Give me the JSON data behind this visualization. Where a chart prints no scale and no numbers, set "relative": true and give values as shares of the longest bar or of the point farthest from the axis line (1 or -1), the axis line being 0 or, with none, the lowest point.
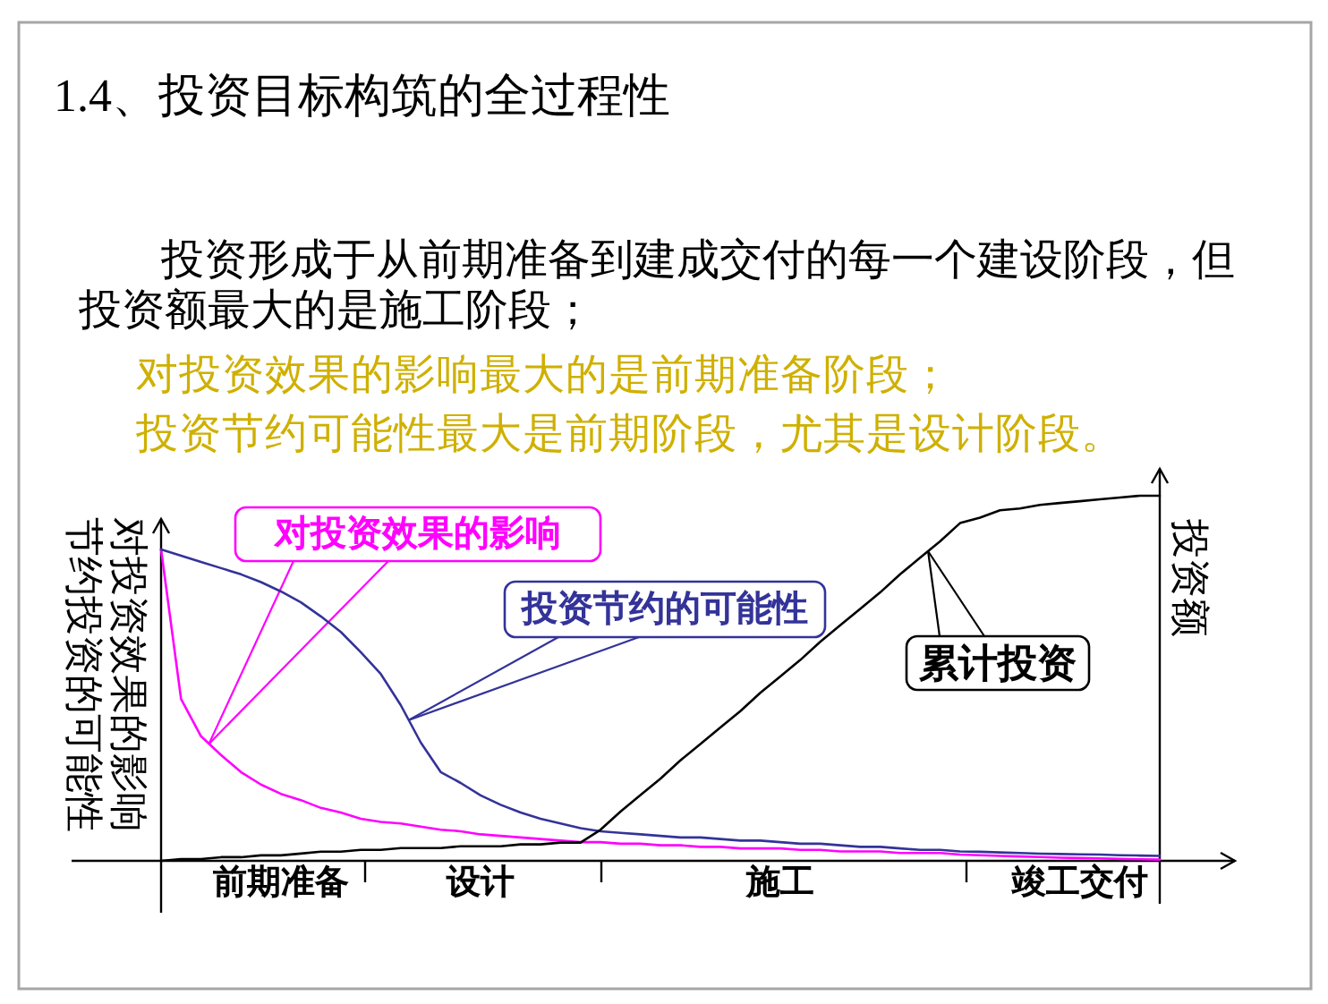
{
  "chart_data": {
    "type": "line",
    "title": "1.4、投资目标构筑的全过程性",
    "subtitle": "投资形成于从前期准备到建成交付的每一个建设阶段，但投资额最大的是施工阶段；",
    "annotations": [
      "对投资效果的影响最大的是前期准备阶段；",
      "投资节约可能性最大是前期阶段，尤其是设计阶段。"
    ],
    "ylabel": "对投资效果的影响节约投资的可能性",
    "y2label": "投资额",
    "relative": true,
    "tick_labels": "x",
    "categories": [
      null,
      null,
      null,
      null,
      null,
      null,
      "前期准备",
      null,
      null,
      null,
      null,
      null,
      null,
      null,
      null,
      null,
      "设计",
      null,
      null,
      null,
      null,
      null,
      null,
      null,
      null,
      null,
      null,
      null,
      null,
      null,
      null,
      "施工",
      null,
      null,
      null,
      null,
      null,
      null,
      null,
      null,
      null,
      null,
      null,
      null,
      null,
      null,
      "竣工交付",
      null,
      null,
      null,
      null
    ],
    "series": [
      {
        "name": "对投资效果的影响",
        "color": "#ff00ff",
        "values": [
          1.0,
          0.52,
          0.4,
          0.34,
          0.285,
          0.245,
          0.215,
          0.195,
          0.17,
          0.155,
          0.135,
          0.125,
          0.12,
          0.11,
          0.1,
          0.095,
          0.085,
          0.08,
          0.075,
          0.07,
          0.065,
          0.06,
          0.06,
          0.055,
          0.055,
          0.05,
          0.05,
          0.045,
          0.045,
          0.04,
          0.04,
          0.04,
          0.035,
          0.035,
          0.03,
          0.03,
          0.03,
          0.025,
          0.025,
          0.025,
          0.02,
          0.018,
          0.016,
          0.014,
          0.012,
          0.01,
          0.009,
          0.008,
          0.006,
          0.005,
          0.004
        ]
      },
      {
        "name": "投资节约的可能性",
        "color": "#333399",
        "values": [
          1.0,
          0.98,
          0.96,
          0.94,
          0.92,
          0.895,
          0.865,
          0.83,
          0.785,
          0.735,
          0.67,
          0.6,
          0.5,
          0.38,
          0.285,
          0.25,
          0.21,
          0.18,
          0.155,
          0.135,
          0.12,
          0.105,
          0.095,
          0.09,
          0.085,
          0.08,
          0.075,
          0.075,
          0.07,
          0.065,
          0.065,
          0.06,
          0.055,
          0.055,
          0.05,
          0.045,
          0.045,
          0.04,
          0.035,
          0.035,
          0.03,
          0.029,
          0.027,
          0.025,
          0.023,
          0.022,
          0.021,
          0.02,
          0.018,
          0.017,
          0.016
        ]
      },
      {
        "name": "累计投资",
        "color": "#000000",
        "axis": "y2",
        "values": [
          0,
          0.005,
          0.005,
          0.01,
          0.01,
          0.015,
          0.015,
          0.02,
          0.025,
          0.025,
          0.03,
          0.03,
          0.035,
          0.035,
          0.035,
          0.04,
          0.04,
          0.04,
          0.045,
          0.045,
          0.05,
          0.05,
          0.085,
          0.135,
          0.18,
          0.225,
          0.275,
          0.32,
          0.365,
          0.41,
          0.46,
          0.505,
          0.55,
          0.6,
          0.645,
          0.69,
          0.735,
          0.785,
          0.83,
          0.875,
          0.925,
          0.94,
          0.96,
          0.965,
          0.975,
          0.98,
          0.985,
          0.99,
          0.995,
          1.0,
          1.0
        ]
      }
    ]
  }
}
